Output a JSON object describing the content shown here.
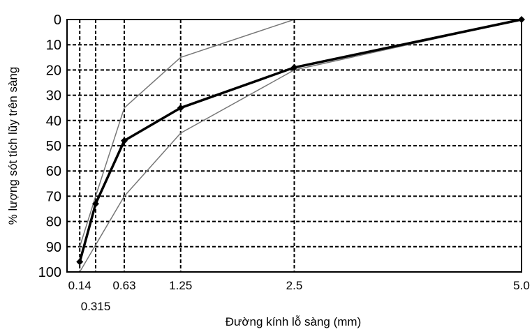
{
  "chart_data": {
    "type": "line",
    "title": "",
    "xlabel": "Đường kính lỗ sàng (mm)",
    "ylabel": "% lượng sót tích lũy trên sàng",
    "xlim": [
      0,
      5.0
    ],
    "ylim": [
      0,
      100
    ],
    "y_inverted": true,
    "x_ticks": [
      0.14,
      0.315,
      0.63,
      1.25,
      2.5,
      5.0
    ],
    "x_tick_labels": [
      "0.14",
      "0.315",
      "0.63",
      "1.25",
      "2.5",
      "5.0"
    ],
    "y_ticks": [
      0,
      10,
      20,
      30,
      40,
      50,
      60,
      70,
      80,
      90,
      100
    ],
    "y_tick_labels": [
      "0",
      "10",
      "20",
      "30",
      "40",
      "50",
      "60",
      "70",
      "80",
      "90",
      "100"
    ],
    "grid": "dashed",
    "series": [
      {
        "role": "upper-bound",
        "x": [
          0.14,
          0.315,
          0.63,
          1.25,
          2.5,
          5.0
        ],
        "y": [
          90,
          70,
          35,
          15,
          0,
          0
        ],
        "color": "#777777"
      },
      {
        "role": "lower-bound",
        "x": [
          0.14,
          0.63,
          1.25,
          2.5,
          5.0
        ],
        "y": [
          100,
          70,
          45,
          20,
          0
        ],
        "color": "#777777"
      },
      {
        "role": "sample",
        "x": [
          0.14,
          0.315,
          0.63,
          1.25,
          2.5,
          5.0
        ],
        "y": [
          96,
          73,
          48,
          35,
          19,
          0
        ],
        "color": "#000000"
      }
    ]
  }
}
